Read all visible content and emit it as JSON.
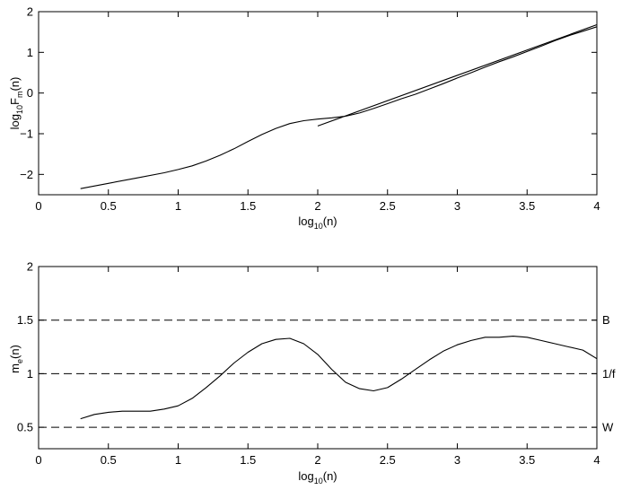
{
  "chart_data": [
    {
      "type": "line",
      "xlabel": "log10(n)",
      "ylabel": "log10Fm(n)",
      "xlim": [
        0,
        4
      ],
      "ylim": [
        -2.5,
        2
      ],
      "xticks": [
        "0",
        "0.5",
        "1",
        "1.5",
        "2",
        "2.5",
        "3",
        "3.5",
        "4"
      ],
      "yticks": [
        "−2",
        "−1",
        "0",
        "1",
        "2"
      ],
      "series": [
        {
          "x": [
            0.3,
            0.5,
            0.7,
            0.9,
            1.0,
            1.1,
            1.2,
            1.3,
            1.4,
            1.5,
            1.6,
            1.7,
            1.8,
            1.9,
            2.0,
            2.1,
            2.2,
            2.3,
            2.4,
            2.5,
            2.6,
            2.7,
            2.8,
            2.9,
            3.0,
            3.1,
            3.2,
            3.3,
            3.4,
            3.5,
            3.6,
            3.7,
            3.8,
            3.9,
            4.0
          ],
          "y": [
            -2.35,
            -2.22,
            -2.09,
            -1.96,
            -1.88,
            -1.79,
            -1.67,
            -1.53,
            -1.37,
            -1.19,
            -1.02,
            -0.87,
            -0.75,
            -0.68,
            -0.64,
            -0.61,
            -0.57,
            -0.49,
            -0.38,
            -0.26,
            -0.14,
            -0.03,
            0.1,
            0.23,
            0.37,
            0.5,
            0.64,
            0.77,
            0.89,
            1.02,
            1.15,
            1.29,
            1.41,
            1.52,
            1.63
          ]
        },
        {
          "x": [
            2.0,
            4.0
          ],
          "y": [
            -0.81,
            1.68
          ]
        }
      ]
    },
    {
      "type": "line",
      "xlabel": "log10(n)",
      "ylabel": "me(n)",
      "xlim": [
        0,
        4
      ],
      "ylim": [
        0.3,
        2
      ],
      "xticks": [
        "0",
        "0.5",
        "1",
        "1.5",
        "2",
        "2.5",
        "3",
        "3.5",
        "4"
      ],
      "yticks": [
        "0.5",
        "1",
        "1.5",
        "2"
      ],
      "reference_lines": [
        {
          "y": 1.5,
          "label": "B"
        },
        {
          "y": 1.0,
          "label": "1/f"
        },
        {
          "y": 0.5,
          "label": "W"
        }
      ],
      "series": [
        {
          "x": [
            0.3,
            0.4,
            0.5,
            0.6,
            0.7,
            0.8,
            0.9,
            1.0,
            1.1,
            1.2,
            1.3,
            1.4,
            1.5,
            1.6,
            1.7,
            1.8,
            1.9,
            2.0,
            2.1,
            2.2,
            2.3,
            2.4,
            2.5,
            2.6,
            2.7,
            2.8,
            2.9,
            3.0,
            3.1,
            3.2,
            3.3,
            3.4,
            3.5,
            3.6,
            3.7,
            3.8,
            3.9,
            4.0
          ],
          "y": [
            0.58,
            0.62,
            0.64,
            0.65,
            0.65,
            0.65,
            0.67,
            0.7,
            0.77,
            0.87,
            0.98,
            1.1,
            1.2,
            1.28,
            1.32,
            1.33,
            1.28,
            1.18,
            1.04,
            0.92,
            0.86,
            0.84,
            0.87,
            0.95,
            1.04,
            1.13,
            1.21,
            1.27,
            1.31,
            1.34,
            1.34,
            1.35,
            1.34,
            1.31,
            1.28,
            1.25,
            1.22,
            1.14
          ]
        }
      ]
    }
  ]
}
